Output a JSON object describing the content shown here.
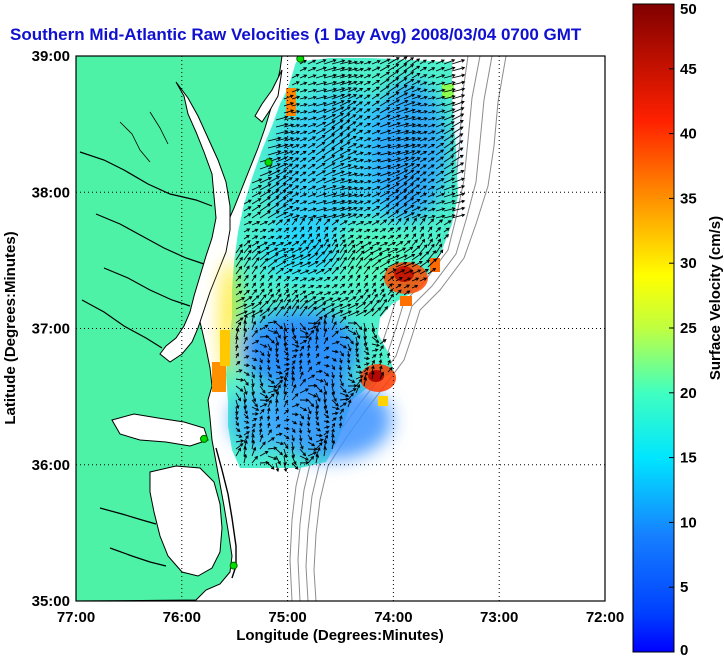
{
  "title": "Southern Mid-Atlantic Raw Velocities (1 Day Avg) 2008/03/04 0700 GMT",
  "map": {
    "xlabel": "Longitude (Degrees:Minutes)",
    "ylabel": "Latitude (Degrees:Minutes)",
    "lon_ticks": [
      "77:00",
      "76:00",
      "75:00",
      "74:00",
      "73:00",
      "72:00"
    ],
    "lat_ticks": [
      "39:00",
      "38:00",
      "37:00",
      "36:00",
      "35:00"
    ],
    "lon_range": [
      -77,
      -72
    ],
    "lat_range": [
      35,
      39
    ],
    "grid": "dotted",
    "colors": {
      "land": "#4df2a6",
      "ocean": "#ffffff",
      "coastline": "#000000",
      "bathymetry": "#8c8c8c",
      "arrows": "#000000",
      "stations": "#00dd00"
    },
    "stations": [
      {
        "lon": -74.88,
        "lat": 38.98
      },
      {
        "lon": -75.18,
        "lat": 38.22
      },
      {
        "lon": -75.79,
        "lat": 36.19
      },
      {
        "lon": -75.51,
        "lat": 35.26
      }
    ]
  },
  "colorbar": {
    "label": "Surface Velocity (cm/s)",
    "min": 0,
    "max": 50,
    "ticks": [
      "0",
      "5",
      "10",
      "15",
      "20",
      "25",
      "30",
      "35",
      "40",
      "45",
      "50"
    ]
  }
}
